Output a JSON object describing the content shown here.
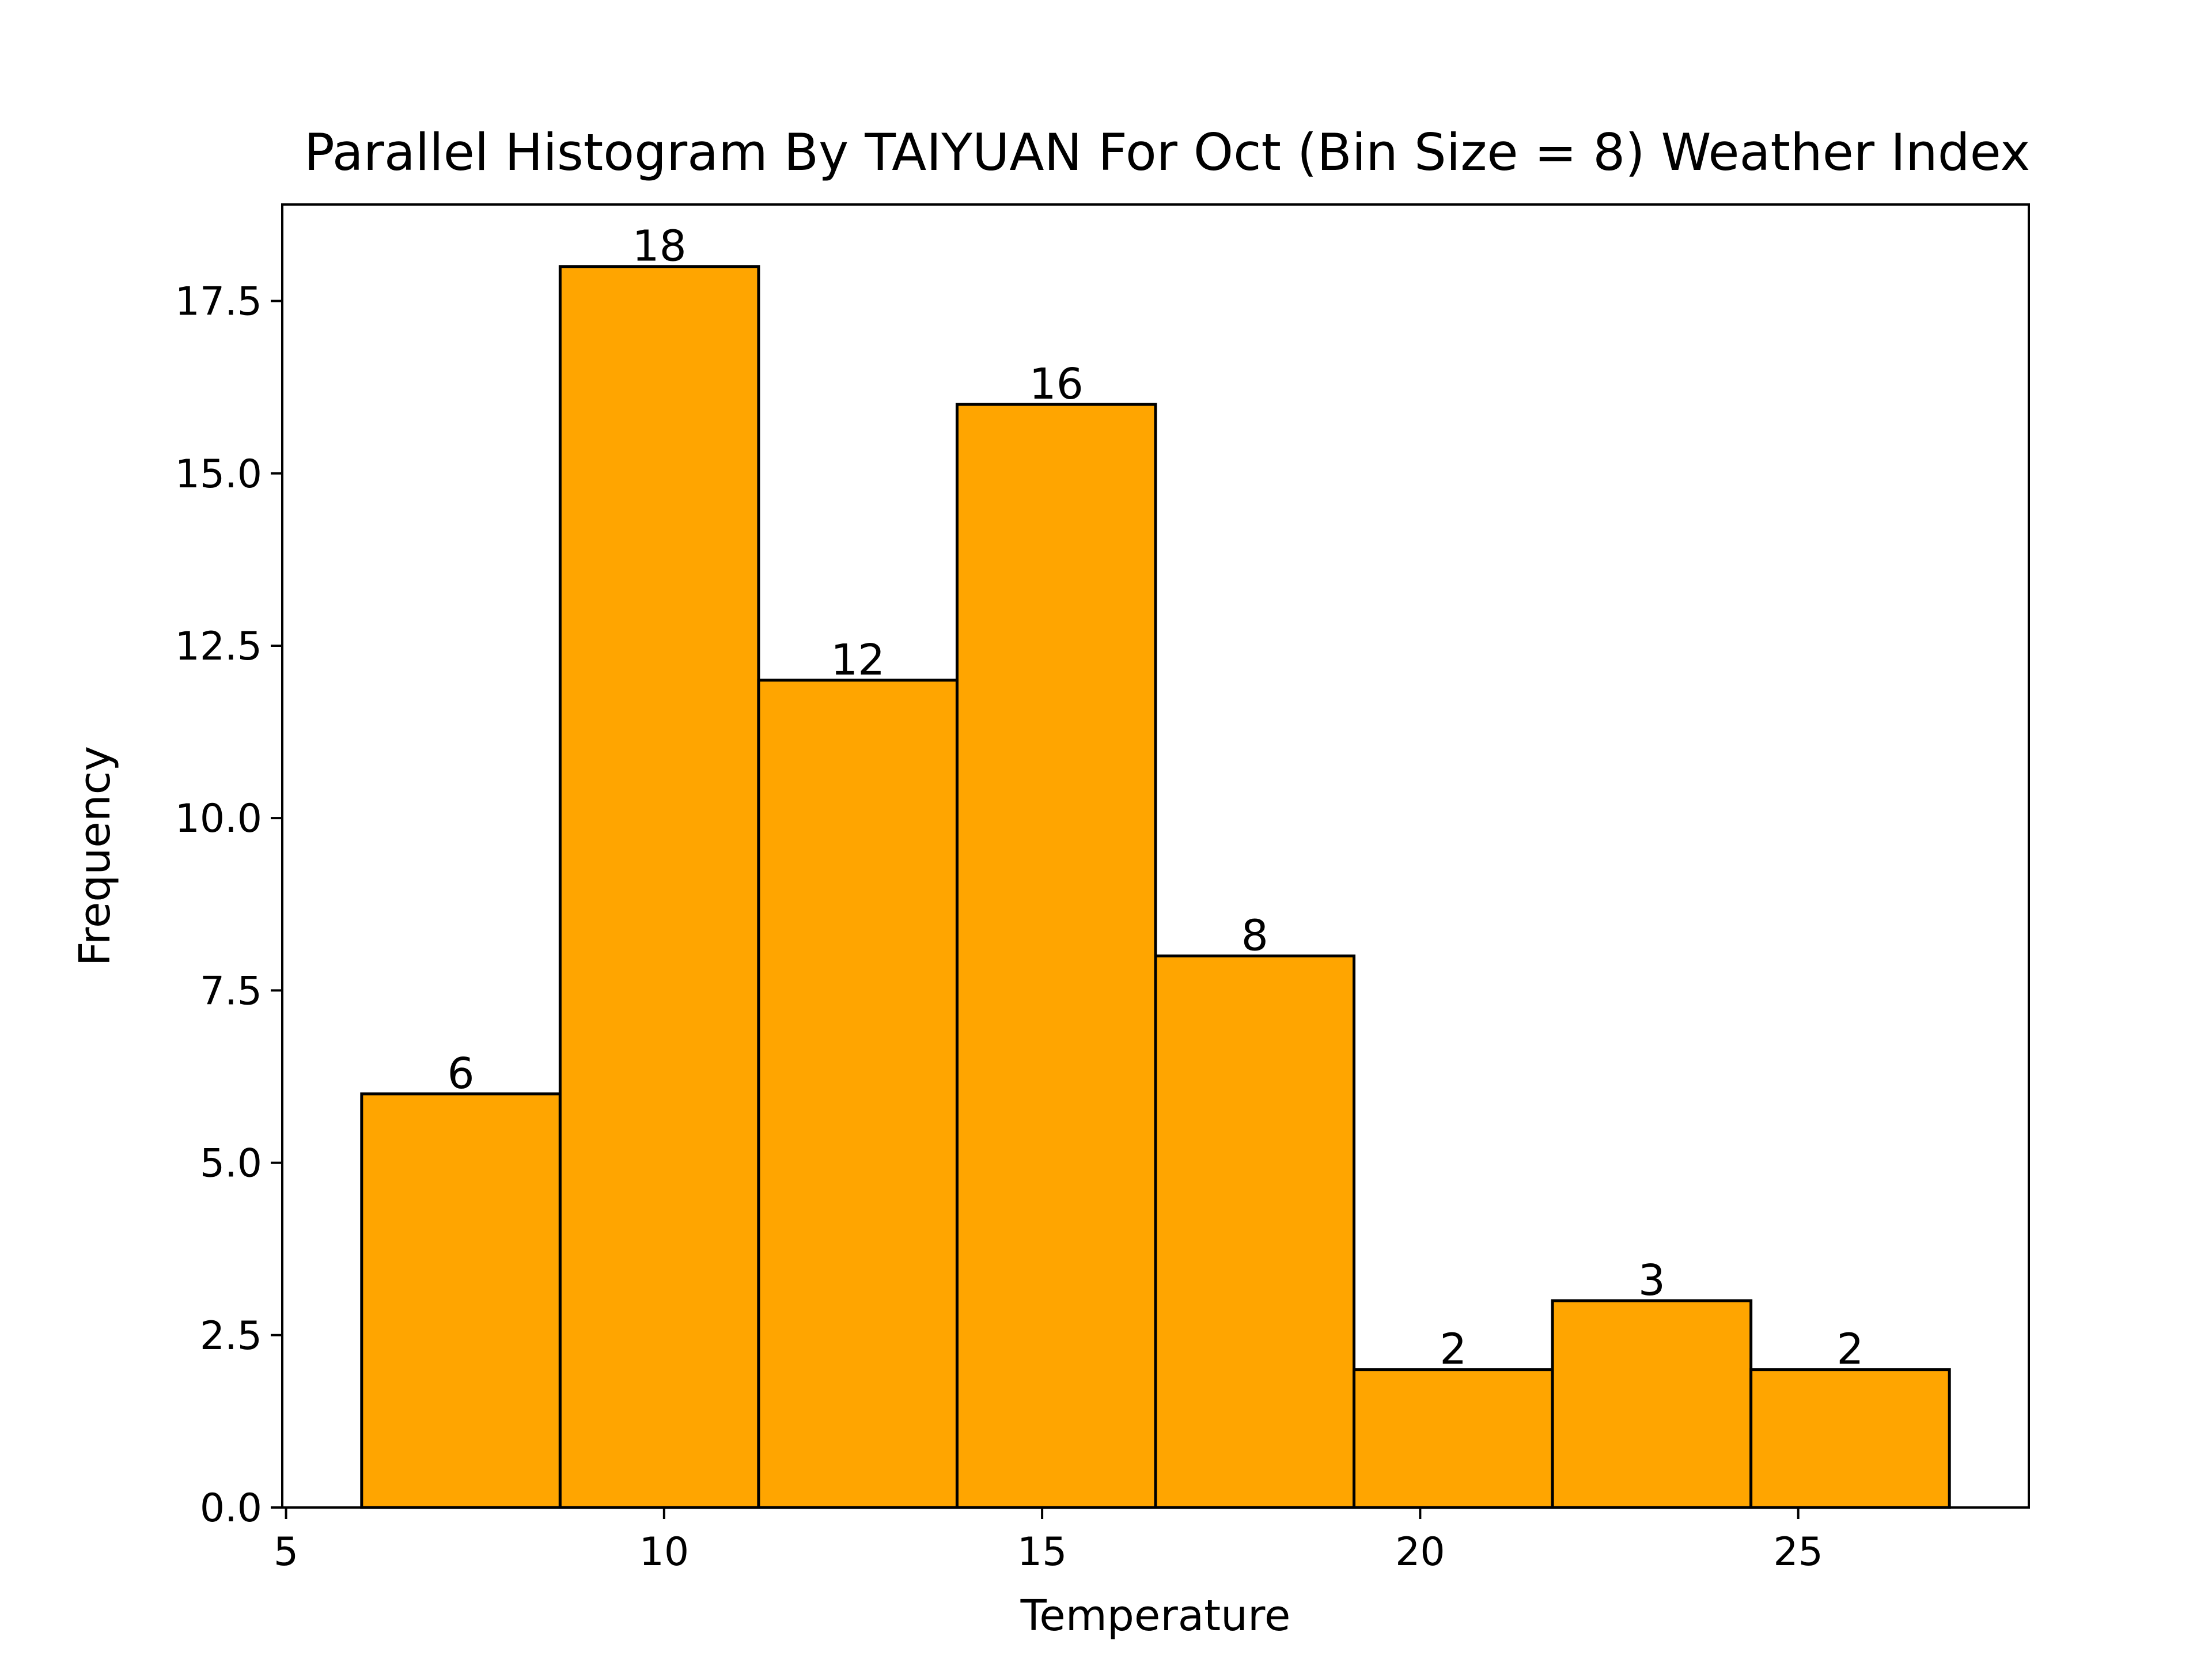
{
  "chart_data": {
    "type": "bar",
    "title": "Parallel Histogram By TAIYUAN For Oct (Bin Size = 8) Weather Index",
    "xlabel": "Temperature",
    "ylabel": "Frequency",
    "bin_edges": [
      6,
      8.625,
      11.25,
      13.875,
      16.5,
      19.125,
      21.75,
      24.375,
      27
    ],
    "values": [
      6,
      18,
      12,
      16,
      8,
      2,
      3,
      2
    ],
    "data_labels": [
      "6",
      "18",
      "12",
      "16",
      "8",
      "2",
      "3",
      "2"
    ],
    "xlim": [
      4.95,
      28.05
    ],
    "ylim": [
      0,
      18.9
    ],
    "x_ticks": [
      5,
      10,
      15,
      20,
      25
    ],
    "x_tick_labels": [
      "5",
      "10",
      "15",
      "20",
      "25"
    ],
    "y_ticks": [
      0,
      2.5,
      5,
      7.5,
      10,
      12.5,
      15,
      17.5
    ],
    "y_tick_labels": [
      "0.0",
      "2.5",
      "5.0",
      "7.5",
      "10.0",
      "12.5",
      "15.0",
      "17.5"
    ],
    "grid": false,
    "legend": "none",
    "bar_color": "#FFA500",
    "edge_color": "#000000"
  }
}
